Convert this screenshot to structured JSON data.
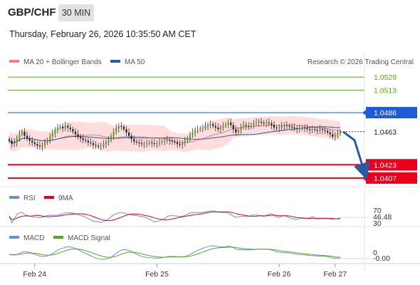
{
  "header": {
    "pair": "GBP/CHF",
    "timeframe": "30 MIN",
    "datetime": "Thursday, February 26, 2026 10:35:50 AM CET"
  },
  "colors": {
    "support": "#e8001c",
    "resistance": "#5aa51e",
    "pivot": "#1f5bd6",
    "current": "#222222",
    "bollinger": "#ffd7d7",
    "ma20": "#f08080",
    "ma50": "#2c5aa0",
    "rsi": "#6b8fd6",
    "rsi_ma": "#e8001c",
    "macd": "#6b8fd6",
    "macd_signal": "#5aa51e",
    "arrow": "#2c5aa0"
  },
  "chart_data": [
    {
      "type": "line",
      "panel": "price",
      "legend": [
        {
          "label": "MA 20 + Bollinger Bands",
          "color": "#f08080"
        },
        {
          "label": "MA 50",
          "color": "#2c5aa0"
        }
      ],
      "credit": "Research © 2026 Trading Central",
      "ylim": [
        1.04,
        1.0536
      ],
      "levels": [
        {
          "value": 1.0529,
          "label": "1.0529",
          "kind": "resistance"
        },
        {
          "value": 1.0513,
          "label": "1.0513",
          "kind": "resistance"
        },
        {
          "value": 1.0486,
          "label": "1.0486",
          "kind": "pivot"
        },
        {
          "value": 1.0463,
          "label": "1.0463",
          "kind": "current"
        },
        {
          "value": 1.0423,
          "label": "1.0423",
          "kind": "support"
        },
        {
          "value": 1.0407,
          "label": "1.0407",
          "kind": "support"
        }
      ],
      "x_ticks": [
        {
          "index": 10,
          "label": "Feb 24"
        },
        {
          "index": 58,
          "label": "Feb 25"
        },
        {
          "index": 106,
          "label": "Feb 26"
        },
        {
          "index": 128,
          "label": "Feb 27"
        }
      ],
      "close": [
        1.0452,
        1.0448,
        1.045,
        1.0455,
        1.046,
        1.0463,
        1.0458,
        1.0455,
        1.0452,
        1.045,
        1.0448,
        1.0446,
        1.0445,
        1.0447,
        1.045,
        1.0453,
        1.0457,
        1.0461,
        1.0465,
        1.0468,
        1.0469,
        1.0467,
        1.047,
        1.0468,
        1.0466,
        1.0463,
        1.046,
        1.0457,
        1.0455,
        1.0453,
        1.0452,
        1.045,
        1.0449,
        1.0447,
        1.0446,
        1.0445,
        1.0446,
        1.0448,
        1.045,
        1.0453,
        1.0458,
        1.0463,
        1.0467,
        1.047,
        1.0469,
        1.0466,
        1.0462,
        1.0458,
        1.0454,
        1.0451,
        1.045,
        1.0449,
        1.0448,
        1.0448,
        1.0449,
        1.045,
        1.0449,
        1.0448,
        1.0449,
        1.045,
        1.0451,
        1.0452,
        1.0453,
        1.0452,
        1.0451,
        1.045,
        1.0448,
        1.0447,
        1.0449,
        1.0452,
        1.0455,
        1.0459,
        1.0462,
        1.0465,
        1.0466,
        1.0467,
        1.0468,
        1.047,
        1.0471,
        1.0472,
        1.047,
        1.0468,
        1.0466,
        1.0468,
        1.047,
        1.0472,
        1.0474,
        1.0471,
        1.0466,
        1.0462,
        1.0465,
        1.0469,
        1.0471,
        1.047,
        1.0469,
        1.0471,
        1.0473,
        1.0474,
        1.0475,
        1.0474,
        1.0473,
        1.0474,
        1.0473,
        1.0471,
        1.0468,
        1.0467,
        1.0468,
        1.047,
        1.0471,
        1.047,
        1.0469,
        1.0468,
        1.0467,
        1.0466,
        1.0467,
        1.0468,
        1.0467,
        1.0466,
        1.0465,
        1.0466,
        1.0465,
        1.0464,
        1.0466,
        1.0465,
        1.0464,
        1.0462,
        1.046,
        1.0457,
        1.0459,
        1.0461,
        1.0463
      ],
      "forecast": {
        "from": 1.0463,
        "to": 1.0422
      }
    },
    {
      "type": "line",
      "panel": "rsi",
      "legend": [
        {
          "label": "RSI",
          "color": "#6b8fd6"
        },
        {
          "label": "9MA",
          "color": "#e8001c"
        }
      ],
      "ylim": [
        30,
        70
      ],
      "ticks": [
        "70",
        "30"
      ],
      "last_value": "46.48"
    },
    {
      "type": "line",
      "panel": "macd",
      "legend": [
        {
          "label": "MACD",
          "color": "#6b8fd6"
        },
        {
          "label": "MACD Signal",
          "color": "#5aa51e"
        }
      ],
      "ticks": [
        "0"
      ],
      "last_value": "-0.00"
    }
  ]
}
